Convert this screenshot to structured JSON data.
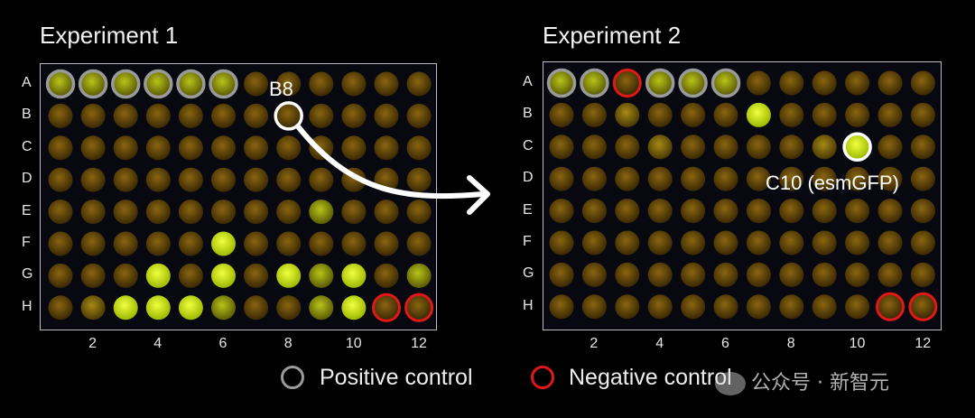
{
  "experiment1": {
    "title": "Experiment 1",
    "annotation": "B8",
    "bright_wells": [
      {
        "well": "G4",
        "level": 0.95
      },
      {
        "well": "G6",
        "level": 0.8
      },
      {
        "well": "G8",
        "level": 0.95
      },
      {
        "well": "G9",
        "level": 0.6
      },
      {
        "well": "G10",
        "level": 0.9
      },
      {
        "well": "G12",
        "level": 0.7
      },
      {
        "well": "H2",
        "level": 0.4
      },
      {
        "well": "H3",
        "level": 0.95
      },
      {
        "well": "H4",
        "level": 0.95
      },
      {
        "well": "H5",
        "level": 0.9
      },
      {
        "well": "H6",
        "level": 0.5
      },
      {
        "well": "H9",
        "level": 0.6
      },
      {
        "well": "H10",
        "level": 0.9
      },
      {
        "well": "F6",
        "level": 0.9
      },
      {
        "well": "E9",
        "level": 0.7
      }
    ],
    "positive_controls": [
      "A1",
      "A2",
      "A3",
      "A4",
      "A5",
      "A6"
    ],
    "negative_controls": [
      "H11",
      "H12"
    ],
    "highlight": "B8"
  },
  "experiment2": {
    "title": "Experiment 2",
    "annotation": "C10 (esmGFP)",
    "bright_wells": [
      {
        "well": "B7",
        "level": 0.9
      },
      {
        "well": "C10",
        "level": 0.95
      },
      {
        "well": "B3",
        "level": 0.4
      },
      {
        "well": "C4",
        "level": 0.3
      },
      {
        "well": "C9",
        "level": 0.35
      }
    ],
    "positive_controls": [
      "A1",
      "A2",
      "A4",
      "A5",
      "A6"
    ],
    "negative_controls": [
      "A3",
      "H11",
      "H12"
    ],
    "highlight": "C10"
  },
  "rows": [
    "A",
    "B",
    "C",
    "D",
    "E",
    "F",
    "G",
    "H"
  ],
  "col_labels": [
    "2",
    "4",
    "6",
    "8",
    "10",
    "12"
  ],
  "legend": {
    "positive": "Positive control",
    "negative": "Negative control",
    "positive_color": "#9a9a9a",
    "negative_color": "#e01818"
  },
  "watermark": "公众号 · 新智元",
  "colors": {
    "dim_well": "#6a4c08",
    "bright_well": "#d8f20a",
    "highlight": "#ffffff"
  }
}
